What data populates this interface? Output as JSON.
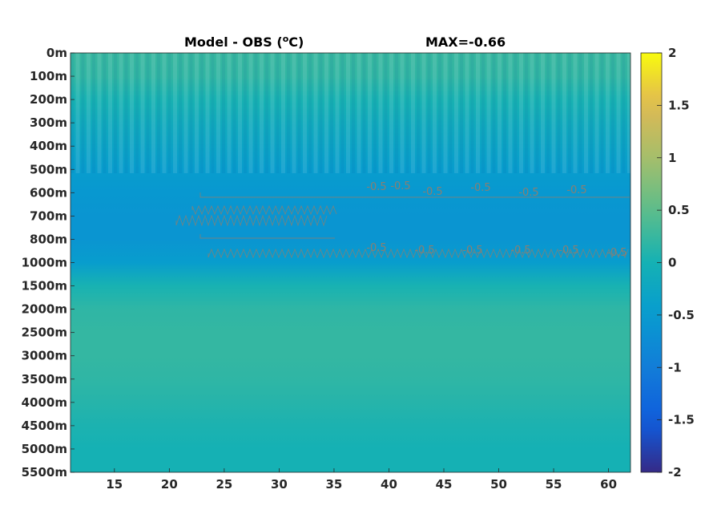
{
  "chart_data": {
    "type": "heatmap",
    "title_left": "Model - OBS (",
    "title_unit_sup": "o",
    "title_unit_end": "C)",
    "title_right": "MAX=-0.66",
    "x_ticks": [
      15,
      20,
      25,
      30,
      35,
      40,
      45,
      50,
      55,
      60
    ],
    "xlim": [
      11,
      62
    ],
    "y_ticks": [
      "0m",
      "100m",
      "200m",
      "300m",
      "400m",
      "500m",
      "600m",
      "700m",
      "800m",
      "1000m",
      "1500m",
      "2000m",
      "2500m",
      "3000m",
      "3500m",
      "4000m",
      "4500m",
      "5000m",
      "5500m"
    ],
    "colorbar": {
      "ticks": [
        "2",
        "1.5",
        "1",
        "0.5",
        "0",
        "-0.5",
        "-1",
        "-1.5",
        "-2"
      ],
      "range": [
        -2,
        2
      ],
      "colormap": "parula"
    },
    "depth_profile": [
      {
        "depth": "0m",
        "value": 0.25
      },
      {
        "depth": "100m",
        "value": 0.2
      },
      {
        "depth": "200m",
        "value": 0.02
      },
      {
        "depth": "300m",
        "value": -0.15
      },
      {
        "depth": "400m",
        "value": -0.3
      },
      {
        "depth": "500m",
        "value": -0.45
      },
      {
        "depth": "600m",
        "value": -0.55
      },
      {
        "depth": "700m",
        "value": -0.6
      },
      {
        "depth": "800m",
        "value": -0.6
      },
      {
        "depth": "1000m",
        "value": -0.45
      },
      {
        "depth": "1500m",
        "value": 0.02
      },
      {
        "depth": "2000m",
        "value": 0.18
      },
      {
        "depth": "2500m",
        "value": 0.22
      },
      {
        "depth": "3000m",
        "value": 0.22
      },
      {
        "depth": "3500m",
        "value": 0.18
      },
      {
        "depth": "4000m",
        "value": 0.12
      },
      {
        "depth": "4500m",
        "value": 0.05
      },
      {
        "depth": "5000m",
        "value": 0.0
      },
      {
        "depth": "5500m",
        "value": 0.0
      }
    ],
    "contour_labels": [
      "-0.5",
      "-0.5",
      "-0.5",
      "-0.5",
      "-0.5",
      "-0.5",
      "-0.5",
      "-0.5",
      "-0.5",
      "-0.5",
      "-0.5",
      "-0.5"
    ]
  }
}
